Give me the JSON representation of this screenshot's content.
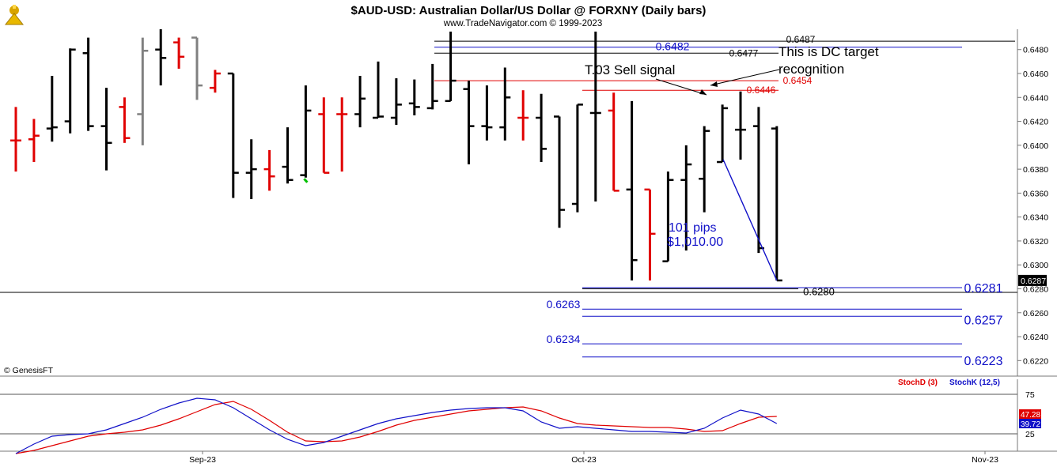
{
  "header": {
    "title": "$AUD-USD:  Australian Dollar/US Dollar @ FORXNY  (Daily bars)",
    "subtitle": "www.TradeNavigator.com © 1999-2023"
  },
  "credit": "© GenesisFT",
  "annotations": {
    "sell_signal": "T.03 Sell signal",
    "dc_target_line1": "This is DC target",
    "dc_target_line2": "recognition",
    "pips": "101 pips",
    "dollars": "$1,010.00"
  },
  "colors": {
    "up_bar": "#000000",
    "signal_bar": "#e00000",
    "grey_bar": "#808080",
    "green_tick": "#00c000",
    "blue_level": "#1010c8",
    "red_level": "#e00000",
    "stoch_d": "#e00000",
    "stoch_k": "#1010c8"
  },
  "chart_data": [
    {
      "type": "ohlc",
      "title": "$AUD-USD:  Australian Dollar/US Dollar @ FORXNY  (Daily bars)",
      "ylim": [
        0.6207,
        0.6497
      ],
      "y_ticks": [
        "0.6480",
        "0.6460",
        "0.6440",
        "0.6420",
        "0.6400",
        "0.6380",
        "0.6360",
        "0.6340",
        "0.6320",
        "0.6300",
        "0.6280",
        "0.6260",
        "0.6240",
        "0.6220"
      ],
      "x_ticks": [
        "Sep-23",
        "Oct-23",
        "Nov-23"
      ],
      "last_price": "0.6287",
      "bars": [
        {
          "h": 0.6432,
          "l": 0.6378,
          "o": 0.6404,
          "c": 0.6404,
          "color": "red"
        },
        {
          "h": 0.6422,
          "l": 0.6386,
          "o": 0.6405,
          "c": 0.6408,
          "color": "red"
        },
        {
          "h": 0.6458,
          "l": 0.6403,
          "o": 0.6414,
          "c": 0.6415,
          "color": "black"
        },
        {
          "h": 0.6481,
          "l": 0.641,
          "o": 0.642,
          "c": 0.648,
          "color": "black"
        },
        {
          "h": 0.649,
          "l": 0.6412,
          "o": 0.6477,
          "c": 0.6416,
          "color": "black"
        },
        {
          "h": 0.6448,
          "l": 0.6379,
          "o": 0.6416,
          "c": 0.6402,
          "color": "black"
        },
        {
          "h": 0.644,
          "l": 0.6402,
          "o": 0.6432,
          "c": 0.6406,
          "color": "red"
        },
        {
          "h": 0.649,
          "l": 0.64,
          "o": 0.6426,
          "c": 0.6479,
          "color": "grey"
        },
        {
          "h": 0.6497,
          "l": 0.645,
          "o": 0.648,
          "c": 0.6473,
          "color": "black"
        },
        {
          "h": 0.649,
          "l": 0.6464,
          "o": 0.6486,
          "c": 0.6474,
          "color": "red"
        },
        {
          "h": 0.649,
          "l": 0.6438,
          "o": 0.649,
          "c": 0.645,
          "color": "grey"
        },
        {
          "h": 0.6463,
          "l": 0.6444,
          "o": 0.6448,
          "c": 0.646,
          "color": "red"
        },
        {
          "h": 0.646,
          "l": 0.6356,
          "o": 0.646,
          "c": 0.6377,
          "color": "black"
        },
        {
          "h": 0.6405,
          "l": 0.6355,
          "o": 0.6377,
          "c": 0.638,
          "color": "black"
        },
        {
          "h": 0.6396,
          "l": 0.6362,
          "o": 0.638,
          "c": 0.6374,
          "color": "red"
        },
        {
          "h": 0.6415,
          "l": 0.6368,
          "o": 0.6382,
          "c": 0.6371,
          "color": "black"
        },
        {
          "h": 0.645,
          "l": 0.6373,
          "o": 0.6375,
          "c": 0.6429,
          "color": "black"
        },
        {
          "h": 0.644,
          "l": 0.6377,
          "o": 0.6426,
          "c": 0.6377,
          "color": "red"
        },
        {
          "h": 0.644,
          "l": 0.6378,
          "o": 0.6426,
          "c": 0.6426,
          "color": "red"
        },
        {
          "h": 0.6458,
          "l": 0.6415,
          "o": 0.6426,
          "c": 0.6439,
          "color": "black"
        },
        {
          "h": 0.647,
          "l": 0.6423,
          "o": 0.6423,
          "c": 0.6424,
          "color": "black"
        },
        {
          "h": 0.6456,
          "l": 0.6417,
          "o": 0.6423,
          "c": 0.6434,
          "color": "black"
        },
        {
          "h": 0.6455,
          "l": 0.6425,
          "o": 0.6435,
          "c": 0.6432,
          "color": "black"
        },
        {
          "h": 0.6468,
          "l": 0.643,
          "o": 0.6431,
          "c": 0.6437,
          "color": "black"
        },
        {
          "h": 0.6495,
          "l": 0.6437,
          "o": 0.6437,
          "c": 0.6454,
          "color": "black"
        },
        {
          "h": 0.6454,
          "l": 0.6384,
          "o": 0.6447,
          "c": 0.6416,
          "color": "black"
        },
        {
          "h": 0.645,
          "l": 0.6404,
          "o": 0.6416,
          "c": 0.6415,
          "color": "black"
        },
        {
          "h": 0.6465,
          "l": 0.6404,
          "o": 0.6415,
          "c": 0.644,
          "color": "black"
        },
        {
          "h": 0.6446,
          "l": 0.6404,
          "o": 0.6423,
          "c": 0.6423,
          "color": "red"
        },
        {
          "h": 0.6443,
          "l": 0.6386,
          "o": 0.6423,
          "c": 0.6397,
          "color": "black"
        },
        {
          "h": 0.6424,
          "l": 0.6331,
          "o": 0.6424,
          "c": 0.6346,
          "color": "black"
        },
        {
          "h": 0.6434,
          "l": 0.6344,
          "o": 0.6351,
          "c": 0.6434,
          "color": "black"
        },
        {
          "h": 0.6495,
          "l": 0.6353,
          "o": 0.6427,
          "c": 0.6427,
          "color": "black"
        },
        {
          "h": 0.6444,
          "l": 0.6362,
          "o": 0.6429,
          "c": 0.6362,
          "color": "red"
        },
        {
          "h": 0.6437,
          "l": 0.6287,
          "o": 0.6363,
          "c": 0.6304,
          "color": "black"
        },
        {
          "h": 0.6363,
          "l": 0.6287,
          "o": 0.6363,
          "c": 0.6326,
          "color": "red"
        },
        {
          "h": 0.6378,
          "l": 0.6303,
          "o": 0.6303,
          "c": 0.6371,
          "color": "black"
        },
        {
          "h": 0.64,
          "l": 0.6312,
          "o": 0.6371,
          "c": 0.6384,
          "color": "black"
        },
        {
          "h": 0.6416,
          "l": 0.6344,
          "o": 0.6372,
          "c": 0.6412,
          "color": "black"
        },
        {
          "h": 0.6434,
          "l": 0.6386,
          "o": 0.6386,
          "c": 0.6431,
          "color": "black"
        },
        {
          "h": 0.6445,
          "l": 0.6388,
          "o": 0.6413,
          "c": 0.6413,
          "color": "black"
        },
        {
          "h": 0.6432,
          "l": 0.631,
          "o": 0.6416,
          "c": 0.6314,
          "color": "black"
        },
        {
          "h": 0.6416,
          "l": 0.6287,
          "o": 0.6414,
          "c": 0.6287,
          "color": "black"
        }
      ],
      "levels": [
        {
          "label": "0.6487",
          "value": 0.6487,
          "color": "black"
        },
        {
          "label": "0.6482",
          "value": 0.6482,
          "color": "blue"
        },
        {
          "label": "0.6477",
          "value": 0.6477,
          "color": "black"
        },
        {
          "label": "0.6454",
          "value": 0.6454,
          "color": "red"
        },
        {
          "label": "0.6446",
          "value": 0.6446,
          "color": "red"
        },
        {
          "label": "0.6281",
          "value": 0.6281,
          "color": "blue"
        },
        {
          "label": "0.6280",
          "value": 0.628,
          "color": "black"
        },
        {
          "label": "0.6263",
          "value": 0.6263,
          "color": "blue"
        },
        {
          "label": "0.6257",
          "value": 0.6257,
          "color": "blue"
        },
        {
          "label": "0.6234",
          "value": 0.6234,
          "color": "blue"
        },
        {
          "label": "0.6223",
          "value": 0.6223,
          "color": "blue"
        }
      ],
      "move": {
        "from": 0.6388,
        "to": 0.6287
      }
    },
    {
      "type": "line",
      "ylim": [
        0,
        100
      ],
      "y_ticks": [
        "75",
        "50",
        "25"
      ],
      "series": [
        {
          "name": "StochD (3)",
          "last_label": "47.28",
          "values": [
            0,
            4,
            10,
            16,
            22,
            25,
            27,
            30,
            36,
            44,
            53,
            62,
            66,
            56,
            42,
            27,
            16,
            15,
            16,
            21,
            28,
            36,
            42,
            46,
            50,
            54,
            56,
            58,
            59,
            54,
            45,
            38,
            36,
            35,
            34,
            33,
            33,
            31,
            28,
            29,
            38,
            46,
            47
          ]
        },
        {
          "name": "StochK (12,5)",
          "last_label": "39.72",
          "values": [
            0,
            12,
            22,
            24,
            25,
            30,
            38,
            46,
            56,
            64,
            70,
            68,
            58,
            44,
            30,
            18,
            10,
            14,
            22,
            30,
            38,
            44,
            48,
            52,
            55,
            57,
            58,
            58,
            54,
            40,
            32,
            34,
            32,
            30,
            28,
            28,
            27,
            26,
            32,
            45,
            55,
            50,
            38
          ]
        }
      ]
    }
  ]
}
